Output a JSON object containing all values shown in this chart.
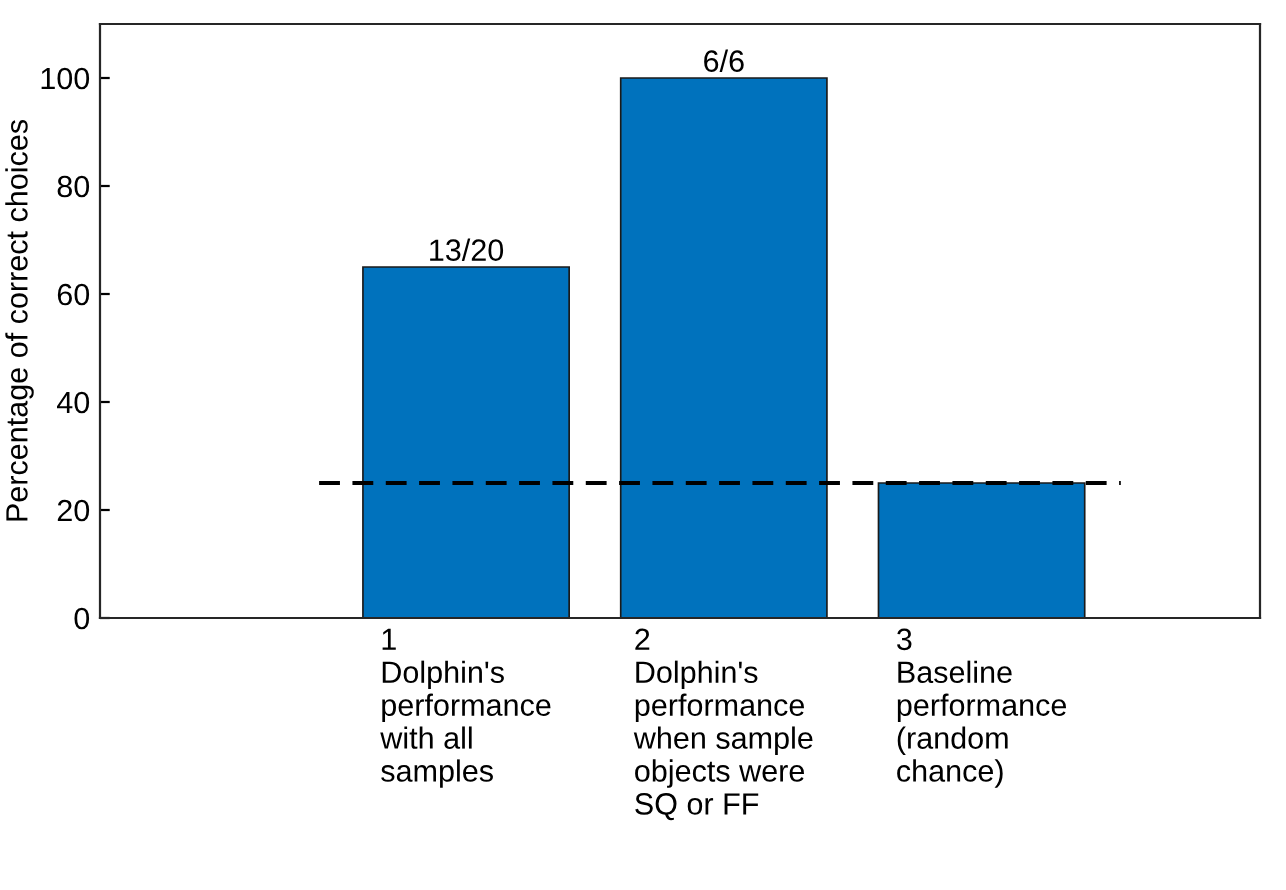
{
  "chart_data": {
    "type": "bar",
    "ylabel": "Percentage of correct choices",
    "x": [
      1,
      2,
      3
    ],
    "xlim": [
      -0.42,
      4.08
    ],
    "xticks": [
      {
        "value": 1,
        "label": "1\nDolphin's\nperformance\nwith all\nsamples"
      },
      {
        "value": 2,
        "label": "2\nDolphin's\nperformance\nwhen sample\nobjects were\nSQ or FF"
      },
      {
        "value": 3,
        "label": "3\nBaseline\nperformance\n(random\nchance)"
      }
    ],
    "ylim": [
      0,
      110
    ],
    "yticks": [
      0,
      20,
      40,
      60,
      80,
      100
    ],
    "series": [
      {
        "color": "#0072bd",
        "values": [
          65,
          100,
          25
        ]
      },
      {
        "type": "line",
        "color": "#000000",
        "line_style": "dashed",
        "x": [
          0.43,
          3.54
        ],
        "values": [
          25,
          25
        ]
      }
    ],
    "annotations": [
      {
        "text": "13/20",
        "x": 1,
        "y": 65
      },
      {
        "text": "6/6",
        "x": 2,
        "y": 100
      }
    ],
    "grid": false,
    "legend": false
  }
}
